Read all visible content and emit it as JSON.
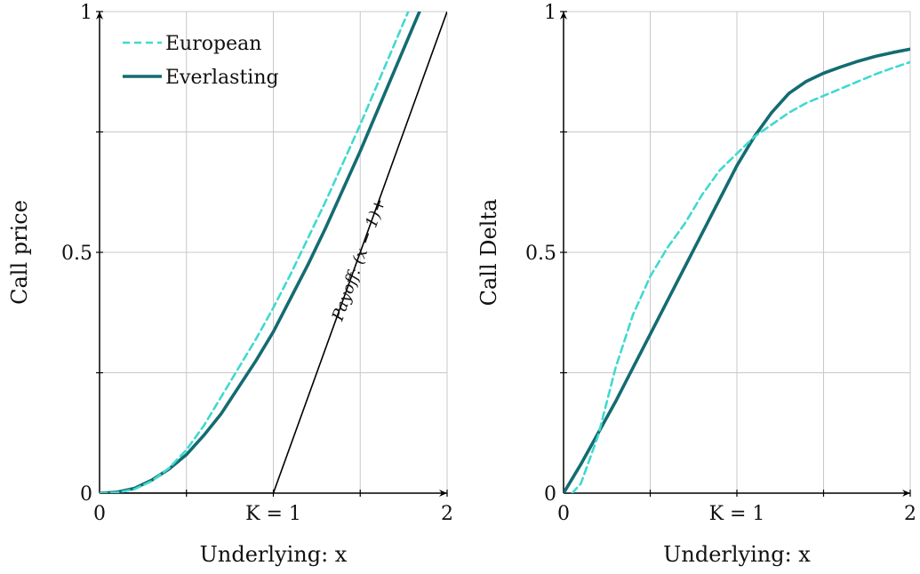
{
  "chart_data": [
    {
      "type": "line",
      "xlabel": "Underlying: x",
      "ylabel": "Call price",
      "xlim": [
        0,
        2
      ],
      "ylim": [
        0,
        1
      ],
      "x_ticks": [
        {
          "value": 0,
          "label": "0"
        },
        {
          "value": 1,
          "label": "K = 1"
        },
        {
          "value": 2,
          "label": "2"
        }
      ],
      "y_ticks": [
        {
          "value": 0,
          "label": "0"
        },
        {
          "value": 0.5,
          "label": "0.5"
        },
        {
          "value": 1,
          "label": "1"
        }
      ],
      "grid": true,
      "legend": "top-left",
      "series": [
        {
          "name": "European",
          "style": "dashed",
          "color": "#40d9d0",
          "x": [
            0,
            0.1,
            0.2,
            0.3,
            0.4,
            0.5,
            0.6,
            0.7,
            0.8,
            0.9,
            1.0,
            1.1,
            1.2,
            1.3,
            1.4,
            1.5,
            1.6,
            1.7,
            1.8,
            1.9,
            2.0
          ],
          "y": [
            0,
            0.001,
            0.008,
            0.025,
            0.052,
            0.09,
            0.14,
            0.2,
            0.26,
            0.32,
            0.385,
            0.455,
            0.53,
            0.605,
            0.685,
            0.765,
            0.85,
            0.935,
            1.02,
            1.1,
            1.19
          ]
        },
        {
          "name": "Everlasting",
          "style": "solid",
          "color": "#136c72",
          "x": [
            0,
            0.1,
            0.2,
            0.3,
            0.4,
            0.5,
            0.6,
            0.7,
            0.8,
            0.9,
            1.0,
            1.1,
            1.2,
            1.3,
            1.4,
            1.5,
            1.6,
            1.7,
            1.8,
            1.9,
            2.0
          ],
          "y": [
            0,
            0.002,
            0.01,
            0.027,
            0.05,
            0.08,
            0.12,
            0.165,
            0.22,
            0.275,
            0.335,
            0.405,
            0.475,
            0.55,
            0.63,
            0.71,
            0.795,
            0.88,
            0.965,
            1.05,
            1.14
          ]
        },
        {
          "name": "Payoff: (x − 1)+",
          "style": "thin",
          "color": "#000000",
          "x": [
            0,
            1,
            2
          ],
          "y": [
            0,
            0,
            1
          ]
        }
      ],
      "annotation": {
        "text": "Payoff: (x − 1)+",
        "x": 1.5,
        "y": 0.5
      }
    },
    {
      "type": "line",
      "xlabel": "Underlying: x",
      "ylabel": "Call Delta",
      "xlim": [
        0,
        2
      ],
      "ylim": [
        0,
        1
      ],
      "x_ticks": [
        {
          "value": 0,
          "label": "0"
        },
        {
          "value": 1,
          "label": "K = 1"
        },
        {
          "value": 2,
          "label": "2"
        }
      ],
      "y_ticks": [
        {
          "value": 0,
          "label": "0"
        },
        {
          "value": 0.5,
          "label": "0.5"
        },
        {
          "value": 1,
          "label": "1"
        }
      ],
      "grid": true,
      "series": [
        {
          "name": "European",
          "style": "dashed",
          "color": "#40d9d0",
          "x": [
            0.05,
            0.1,
            0.2,
            0.3,
            0.4,
            0.5,
            0.6,
            0.7,
            0.8,
            0.9,
            1.0,
            1.1,
            1.2,
            1.3,
            1.4,
            1.5,
            1.6,
            1.7,
            1.8,
            1.9,
            2.0
          ],
          "y": [
            0,
            0.02,
            0.12,
            0.26,
            0.37,
            0.45,
            0.51,
            0.56,
            0.62,
            0.67,
            0.705,
            0.74,
            0.765,
            0.79,
            0.81,
            0.825,
            0.84,
            0.855,
            0.87,
            0.883,
            0.895
          ]
        },
        {
          "name": "Everlasting",
          "style": "solid",
          "color": "#136c72",
          "x": [
            0,
            0.1,
            0.2,
            0.3,
            0.4,
            0.5,
            0.6,
            0.7,
            0.8,
            0.9,
            1.0,
            1.1,
            1.2,
            1.3,
            1.4,
            1.5,
            1.6,
            1.7,
            1.8,
            1.9,
            2.0
          ],
          "y": [
            0,
            0.06,
            0.125,
            0.19,
            0.26,
            0.33,
            0.4,
            0.47,
            0.54,
            0.61,
            0.68,
            0.74,
            0.79,
            0.83,
            0.855,
            0.872,
            0.885,
            0.897,
            0.907,
            0.915,
            0.922
          ]
        }
      ]
    }
  ]
}
